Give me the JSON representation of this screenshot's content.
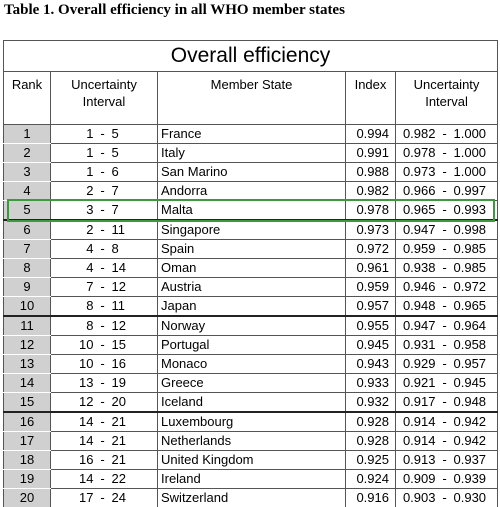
{
  "title": "Table 1. Overall efficiency in all WHO member states",
  "table": {
    "caption": "Overall efficiency",
    "headers": [
      "Rank",
      "Uncertainty Interval",
      "Member State",
      "Index",
      "Uncertainty Interval"
    ],
    "separator": "-",
    "rows": [
      [
        "1",
        "1",
        "5",
        "France",
        "0.994",
        "0.982",
        "1.000"
      ],
      [
        "2",
        "1",
        "5",
        "Italy",
        "0.991",
        "0.978",
        "1.000"
      ],
      [
        "3",
        "1",
        "6",
        "San Marino",
        "0.988",
        "0.973",
        "1.000"
      ],
      [
        "4",
        "2",
        "7",
        "Andorra",
        "0.982",
        "0.966",
        "0.997"
      ],
      [
        "5",
        "3",
        "7",
        "Malta",
        "0.978",
        "0.965",
        "0.993"
      ],
      [
        "6",
        "2",
        "11",
        "Singapore",
        "0.973",
        "0.947",
        "0.998"
      ],
      [
        "7",
        "4",
        "8",
        "Spain",
        "0.972",
        "0.959",
        "0.985"
      ],
      [
        "8",
        "4",
        "14",
        "Oman",
        "0.961",
        "0.938",
        "0.985"
      ],
      [
        "9",
        "7",
        "12",
        "Austria",
        "0.959",
        "0.946",
        "0.972"
      ],
      [
        "10",
        "8",
        "11",
        "Japan",
        "0.957",
        "0.948",
        "0.965"
      ],
      [
        "11",
        "8",
        "12",
        "Norway",
        "0.955",
        "0.947",
        "0.964"
      ],
      [
        "12",
        "10",
        "15",
        "Portugal",
        "0.945",
        "0.931",
        "0.958"
      ],
      [
        "13",
        "10",
        "16",
        "Monaco",
        "0.943",
        "0.929",
        "0.957"
      ],
      [
        "14",
        "13",
        "19",
        "Greece",
        "0.933",
        "0.921",
        "0.945"
      ],
      [
        "15",
        "12",
        "20",
        "Iceland",
        "0.932",
        "0.917",
        "0.948"
      ],
      [
        "16",
        "14",
        "21",
        "Luxembourg",
        "0.928",
        "0.914",
        "0.942"
      ],
      [
        "17",
        "14",
        "21",
        "Netherlands",
        "0.928",
        "0.914",
        "0.942"
      ],
      [
        "18",
        "16",
        "21",
        "United Kingdom",
        "0.925",
        "0.913",
        "0.937"
      ],
      [
        "19",
        "14",
        "22",
        "Ireland",
        "0.924",
        "0.909",
        "0.939"
      ],
      [
        "20",
        "17",
        "24",
        "Switzerland",
        "0.916",
        "0.903",
        "0.930"
      ]
    ]
  }
}
